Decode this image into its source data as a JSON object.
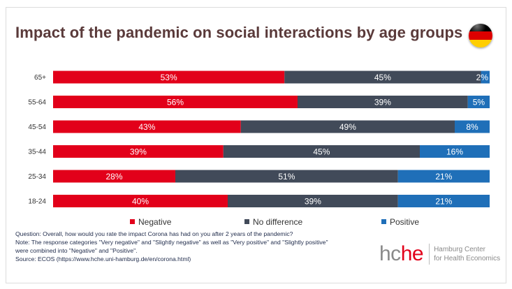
{
  "title": "Impact of the pandemic on social interactions by age groups",
  "flag": {
    "icon": "germany-flag-icon",
    "colors": [
      "#000000",
      "#dd0000",
      "#ffce00"
    ]
  },
  "colors": {
    "negative": "#e2001a",
    "no_difference": "#414a59",
    "positive": "#1f6fb8"
  },
  "chart_data": {
    "type": "bar",
    "orientation": "horizontal",
    "stacked": true,
    "percent_stacked": true,
    "categories": [
      "65+",
      "55-64",
      "45-54",
      "35-44",
      "25-34",
      "18-24"
    ],
    "series": [
      {
        "name": "Negative",
        "values": [
          53,
          56,
          43,
          39,
          28,
          40
        ],
        "labels": [
          "53%",
          "56%",
          "43%",
          "39%",
          "28%",
          "40%"
        ]
      },
      {
        "name": "No difference",
        "values": [
          45,
          39,
          49,
          45,
          51,
          39
        ],
        "labels": [
          "45%",
          "39%",
          "49%",
          "45%",
          "51%",
          "39%"
        ]
      },
      {
        "name": "Positive",
        "values": [
          2,
          5,
          8,
          16,
          21,
          21
        ],
        "labels": [
          "2%",
          "5%",
          "8%",
          "16%",
          "21%",
          "21%"
        ]
      }
    ],
    "xlim": [
      0,
      100
    ],
    "grid": false,
    "legend_position": "bottom"
  },
  "notes": {
    "question": "Question: Overall, how would you rate the impact Corona has had on you after 2 years of the pandemic?",
    "note_line1": "Note: The response categories \"Very negative\" and \"Slightly negative\" as well as \"Very positive\" and \"Slightly positive\"",
    "note_line2": "were combined into \"Negative\" and \"Positive\".",
    "source": "Source: ECOS (https://www.hche.uni-hamburg.de/en/corona.html)"
  },
  "logo": {
    "word_part1": "hc",
    "word_part2": "he",
    "name_line1": "Hamburg Center",
    "name_line2": "for Health Economics"
  }
}
